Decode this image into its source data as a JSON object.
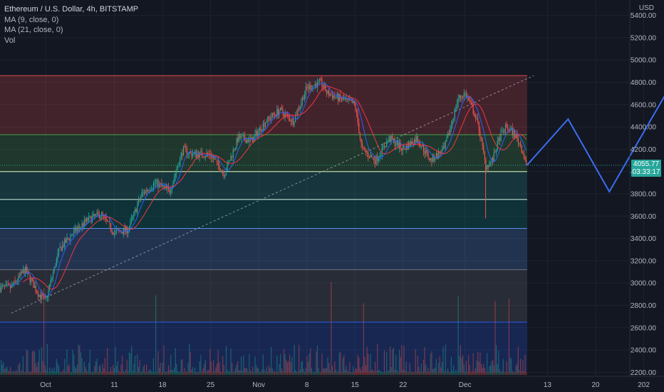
{
  "header": {
    "title": "Ethereum / U.S. Dollar, 4h, BITSTAMP",
    "indicators": [
      "MA (9, close, 0)",
      "MA (21, close, 0)",
      "Vol"
    ],
    "currency": "USD"
  },
  "last_price": {
    "value": "4055.77",
    "countdown": "03:33:17"
  },
  "colors": {
    "background": "#131722",
    "up": "#26a69a",
    "down": "#ef5350",
    "ma9": "#2962ff",
    "ma21": "#f23645",
    "projection": "#3a6df0"
  },
  "chart_data": {
    "type": "candlestick",
    "title": "Ethereum / U.S. Dollar, 4h, BITSTAMP",
    "ylabel": "USD",
    "ylim": [
      2200,
      5500
    ],
    "y_ticks": [
      2200,
      2400,
      2600,
      2800,
      3000,
      3200,
      3400,
      3600,
      3800,
      4000,
      4200,
      4400,
      4600,
      4800,
      5000,
      5200,
      5400
    ],
    "x_ticks": [
      "Oct",
      "11",
      "18",
      "25",
      "Nov",
      "8",
      "15",
      "22",
      "Dec",
      "13",
      "20",
      "202"
    ],
    "zones": [
      {
        "from": 4330,
        "to": 4860,
        "color": "#ef5350"
      },
      {
        "from": 4000,
        "to": 4330,
        "color": "#4caf50"
      },
      {
        "from": 3750,
        "to": 4000,
        "color": "#26a69a"
      },
      {
        "from": 3490,
        "to": 3750,
        "color": "#009688"
      },
      {
        "from": 3120,
        "to": 3490,
        "color": "#5b9cf6"
      },
      {
        "from": 2650,
        "to": 3120,
        "color": "#787b86"
      },
      {
        "from": 2200,
        "to": 2650,
        "color": "#2962ff"
      }
    ],
    "trendline": {
      "from": {
        "date": "Sep 26",
        "price": 2730
      },
      "to": {
        "date": "Dec 11",
        "price": 4860
      }
    },
    "price_path": [
      [
        "Sep 26",
        2960
      ],
      [
        "Sep 28",
        3120
      ],
      [
        "Sep 30",
        2900
      ],
      [
        "Oct 1",
        2840
      ],
      [
        "Oct 3",
        3300
      ],
      [
        "Oct 5",
        3450
      ],
      [
        "Oct 7",
        3560
      ],
      [
        "Oct 9",
        3620
      ],
      [
        "Oct 11",
        3450
      ],
      [
        "Oct 13",
        3480
      ],
      [
        "Oct 15",
        3800
      ],
      [
        "Oct 17",
        3900
      ],
      [
        "Oct 19",
        3820
      ],
      [
        "Oct 21",
        4200
      ],
      [
        "Oct 22",
        4160
      ],
      [
        "Oct 25",
        4150
      ],
      [
        "Oct 27",
        3980
      ],
      [
        "Oct 29",
        4300
      ],
      [
        "Oct 31",
        4280
      ],
      [
        "Nov 2",
        4450
      ],
      [
        "Nov 4",
        4550
      ],
      [
        "Nov 6",
        4450
      ],
      [
        "Nov 8",
        4750
      ],
      [
        "Nov 10",
        4800
      ],
      [
        "Nov 11",
        4700
      ],
      [
        "Nov 13",
        4650
      ],
      [
        "Nov 15",
        4600
      ],
      [
        "Nov 16",
        4200
      ],
      [
        "Nov 18",
        4100
      ],
      [
        "Nov 20",
        4300
      ],
      [
        "Nov 22",
        4200
      ],
      [
        "Nov 24",
        4300
      ],
      [
        "Nov 26",
        4100
      ],
      [
        "Nov 28",
        4200
      ],
      [
        "Nov 30",
        4650
      ],
      [
        "Dec 1",
        4700
      ],
      [
        "Dec 2",
        4580
      ],
      [
        "Dec 3",
        4400
      ],
      [
        "Dec 4",
        4050
      ],
      [
        "Dec 5",
        4100
      ],
      [
        "Dec 6",
        4300
      ],
      [
        "Dec 7",
        4400
      ],
      [
        "Dec 8",
        4350
      ],
      [
        "Dec 9",
        4250
      ],
      [
        "Dec 10",
        4056
      ]
    ],
    "low_wick": {
      "date": "Dec 4",
      "price": 3580
    },
    "projection": [
      [
        "Dec 10",
        4056
      ],
      [
        "Dec 16",
        4470
      ],
      [
        "Dec 22",
        3820
      ],
      [
        "Dec 31",
        4780
      ]
    ]
  }
}
